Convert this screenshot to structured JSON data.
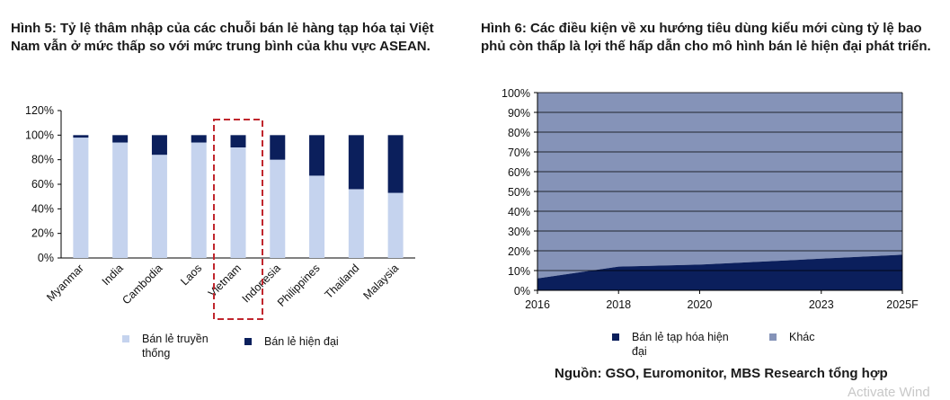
{
  "figure1": {
    "title": "Hình 5: Tỷ lệ thâm nhập của các chuỗi bán lẻ hàng tạp hóa tại Việt Nam vẫn ở mức thấp so với mức trung bình của khu vực ASEAN.",
    "legend": {
      "traditional": "Bán lẻ truyền thống",
      "modern": "Bán lẻ hiện đại"
    }
  },
  "figure2": {
    "title": "Hình 6: Các điều kiện về xu hướng tiêu dùng kiểu mới cùng tỷ lệ bao phủ còn thấp là lợi thế hấp dẫn cho mô hình bán lẻ hiện đại phát triển.",
    "legend": {
      "grocery": "Bán lẻ tạp hóa hiện đại",
      "other": "Khác"
    }
  },
  "source": "Nguồn: GSO, Euromonitor, MBS Research tổng hợp",
  "watermark": "Activate Wind",
  "chart_data": [
    {
      "type": "bar",
      "stacked": true,
      "categories": [
        "Myanmar",
        "India",
        "Cambodia",
        "Laos",
        "Vietnam",
        "Indonesia",
        "Philippines",
        "Thailand",
        "Malaysia"
      ],
      "series": [
        {
          "name": "Bán lẻ truyền thống",
          "color": "#c5d3ee",
          "values": [
            98,
            94,
            84,
            94,
            90,
            80,
            67,
            56,
            53
          ]
        },
        {
          "name": "Bán lẻ hiện đại",
          "color": "#0b1f5c",
          "values": [
            2,
            6,
            16,
            6,
            10,
            20,
            33,
            44,
            47
          ]
        }
      ],
      "ylim": [
        0,
        120
      ],
      "yticks": [
        0,
        20,
        40,
        60,
        80,
        100,
        120
      ],
      "ytick_format": "percent",
      "highlight": "Vietnam",
      "highlight_color": "#c0262d",
      "legend_position": "bottom"
    },
    {
      "type": "area",
      "stacked": true,
      "x": [
        "2016",
        "2018",
        "2020",
        "2023",
        "2025F"
      ],
      "x_positions": [
        2016,
        2018,
        2020,
        2023,
        2025
      ],
      "series": [
        {
          "name": "Bán lẻ tạp hóa hiện đại",
          "color": "#0b1f5c",
          "values": [
            6,
            12,
            13,
            16,
            18
          ]
        },
        {
          "name": "Khác",
          "color": "#8593b8",
          "values": [
            94,
            88,
            87,
            84,
            82
          ]
        }
      ],
      "ylim": [
        0,
        100
      ],
      "yticks": [
        0,
        10,
        20,
        30,
        40,
        50,
        60,
        70,
        80,
        90,
        100
      ],
      "ytick_format": "percent",
      "grid": true,
      "legend_position": "bottom"
    }
  ]
}
